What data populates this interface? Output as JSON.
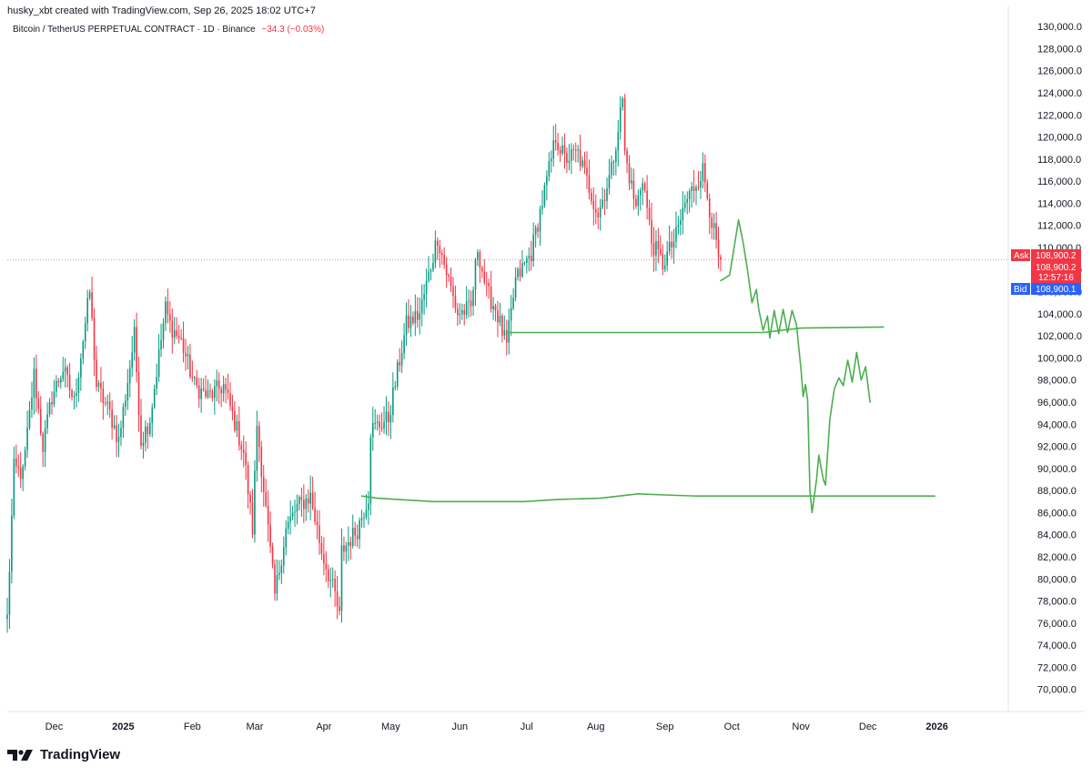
{
  "header": {
    "attribution": "husky_xbt created with TradingView.com, Sep 26, 2025 18:02 UTC+7",
    "symbol": "Bitcoin / TetherUS PERPETUAL CONTRACT · 1D · Binance",
    "change": "−34.3 (−0.03%)"
  },
  "footer": {
    "brand": "TradingView"
  },
  "colors": {
    "up": "#089981",
    "down": "#f23645",
    "drawing": "#4caf50",
    "bid": "#2962ff",
    "ask": "#f23645"
  },
  "price_tags": {
    "ask_label": "Ask",
    "ask_value": "108,900.2",
    "last_value": "108,900.2",
    "countdown": "12:57:16",
    "bid_label": "Bid",
    "bid_value": "108,900.1"
  },
  "chart_data": {
    "type": "candlestick",
    "title": "Bitcoin / TetherUS PERPETUAL CONTRACT · 1D · Binance",
    "ylim": [
      68000,
      131000
    ],
    "y_ticks": [
      "70,000.0",
      "72,000.0",
      "74,000.0",
      "76,000.0",
      "78,000.0",
      "80,000.0",
      "82,000.0",
      "84,000.0",
      "86,000.0",
      "88,000.0",
      "90,000.0",
      "92,000.0",
      "94,000.0",
      "96,000.0",
      "98,000.0",
      "100,000.0",
      "102,000.0",
      "104,000.0",
      "106,000.0",
      "108,000.0",
      "110,000.0",
      "112,000.0",
      "114,000.0",
      "116,000.0",
      "118,000.0",
      "120,000.0",
      "122,000.0",
      "124,000.0",
      "126,000.0",
      "128,000.0",
      "130,000.0"
    ],
    "x_ticks": [
      {
        "label": "Dec",
        "date": "2024-12-01"
      },
      {
        "label": "2025",
        "date": "2025-01-01",
        "bold": true
      },
      {
        "label": "Feb",
        "date": "2025-02-01"
      },
      {
        "label": "Mar",
        "date": "2025-03-01"
      },
      {
        "label": "Apr",
        "date": "2025-04-01"
      },
      {
        "label": "May",
        "date": "2025-05-01"
      },
      {
        "label": "Jun",
        "date": "2025-06-01"
      },
      {
        "label": "Jul",
        "date": "2025-07-01"
      },
      {
        "label": "Aug",
        "date": "2025-08-01"
      },
      {
        "label": "Sep",
        "date": "2025-09-01"
      },
      {
        "label": "Oct",
        "date": "2025-10-01"
      },
      {
        "label": "Nov",
        "date": "2025-11-01"
      },
      {
        "label": "Dec",
        "date": "2025-12-01"
      },
      {
        "label": "2026",
        "date": "2026-01-01",
        "bold": true
      }
    ],
    "anchors": [
      [
        "2024-11-10",
        76500
      ],
      [
        "2024-11-13",
        90000
      ],
      [
        "2024-11-17",
        89500
      ],
      [
        "2024-11-22",
        98500
      ],
      [
        "2024-11-26",
        92000
      ],
      [
        "2024-11-30",
        96500
      ],
      [
        "2024-12-05",
        99000
      ],
      [
        "2024-12-10",
        96000
      ],
      [
        "2024-12-17",
        106000
      ],
      [
        "2024-12-20",
        97500
      ],
      [
        "2024-12-26",
        95000
      ],
      [
        "2024-12-30",
        92500
      ],
      [
        "2025-01-06",
        102000
      ],
      [
        "2025-01-09",
        92500
      ],
      [
        "2025-01-13",
        94500
      ],
      [
        "2025-01-20",
        104500
      ],
      [
        "2025-01-22",
        103000
      ],
      [
        "2025-01-27",
        101500
      ],
      [
        "2025-02-02",
        97500
      ],
      [
        "2025-02-08",
        96500
      ],
      [
        "2025-02-15",
        97500
      ],
      [
        "2025-02-24",
        91500
      ],
      [
        "2025-02-28",
        84500
      ],
      [
        "2025-03-02",
        94000
      ],
      [
        "2025-03-10",
        78500
      ],
      [
        "2025-03-15",
        84500
      ],
      [
        "2025-03-20",
        86500
      ],
      [
        "2025-03-26",
        87500
      ],
      [
        "2025-03-31",
        82500
      ],
      [
        "2025-04-06",
        78500
      ],
      [
        "2025-04-08",
        76500
      ],
      [
        "2025-04-09",
        82500
      ],
      [
        "2025-04-16",
        84500
      ],
      [
        "2025-04-21",
        87500
      ],
      [
        "2025-04-22",
        93500
      ],
      [
        "2025-04-30",
        94500
      ],
      [
        "2025-05-08",
        103000
      ],
      [
        "2025-05-14",
        104000
      ],
      [
        "2025-05-22",
        111000
      ],
      [
        "2025-05-25",
        108500
      ],
      [
        "2025-05-31",
        104000
      ],
      [
        "2025-06-06",
        104500
      ],
      [
        "2025-06-09",
        110000
      ],
      [
        "2025-06-13",
        106000
      ],
      [
        "2025-06-17",
        104500
      ],
      [
        "2025-06-22",
        101000
      ],
      [
        "2025-06-26",
        107000
      ],
      [
        "2025-07-03",
        109500
      ],
      [
        "2025-07-10",
        116000
      ],
      [
        "2025-07-14",
        120000
      ],
      [
        "2025-07-18",
        118000
      ],
      [
        "2025-07-24",
        118500
      ],
      [
        "2025-08-02",
        113000
      ],
      [
        "2025-08-08",
        117000
      ],
      [
        "2025-08-13",
        123500
      ],
      [
        "2025-08-14",
        118500
      ],
      [
        "2025-08-19",
        113500
      ],
      [
        "2025-08-22",
        116500
      ],
      [
        "2025-08-26",
        110500
      ],
      [
        "2025-08-31",
        108500
      ],
      [
        "2025-09-06",
        111000
      ],
      [
        "2025-09-10",
        114000
      ],
      [
        "2025-09-18",
        117000
      ],
      [
        "2025-09-22",
        112500
      ],
      [
        "2025-09-25",
        109000
      ],
      [
        "2025-09-26",
        108900
      ]
    ],
    "drawings": [
      {
        "name": "support-line-102k",
        "points": [
          [
            "2025-06-22",
            102300
          ],
          [
            "2025-10-15",
            102300
          ],
          [
            "2025-11-01",
            102700
          ],
          [
            "2025-12-08",
            102800
          ]
        ]
      },
      {
        "name": "support-line-87k",
        "points": [
          [
            "2025-04-18",
            87500
          ],
          [
            "2025-04-25",
            87300
          ],
          [
            "2025-05-20",
            87000
          ],
          [
            "2025-06-30",
            87000
          ],
          [
            "2025-07-15",
            87200
          ],
          [
            "2025-08-03",
            87300
          ],
          [
            "2025-08-20",
            87700
          ],
          [
            "2025-09-01",
            87600
          ],
          [
            "2025-09-15",
            87500
          ],
          [
            "2025-10-15",
            87500
          ],
          [
            "2025-11-15",
            87500
          ],
          [
            "2025-12-31",
            87500
          ]
        ]
      },
      {
        "name": "forecast-path",
        "points": [
          [
            "2025-09-26",
            107000
          ],
          [
            "2025-09-30",
            107500
          ],
          [
            "2025-10-02",
            110000
          ],
          [
            "2025-10-04",
            112500
          ],
          [
            "2025-10-06",
            110500
          ],
          [
            "2025-10-08",
            108000
          ],
          [
            "2025-10-10",
            105000
          ],
          [
            "2025-10-12",
            106200
          ],
          [
            "2025-10-13",
            104500
          ],
          [
            "2025-10-15",
            102500
          ],
          [
            "2025-10-17",
            103800
          ],
          [
            "2025-10-18",
            101800
          ],
          [
            "2025-10-20",
            104300
          ],
          [
            "2025-10-22",
            102200
          ],
          [
            "2025-10-24",
            104400
          ],
          [
            "2025-10-26",
            102300
          ],
          [
            "2025-10-28",
            104300
          ],
          [
            "2025-10-30",
            103000
          ],
          [
            "2025-10-31",
            101000
          ],
          [
            "2025-11-01",
            99000
          ],
          [
            "2025-11-02",
            96500
          ],
          [
            "2025-11-03",
            97600
          ],
          [
            "2025-11-04",
            96200
          ],
          [
            "2025-11-05",
            88000
          ],
          [
            "2025-11-06",
            86000
          ],
          [
            "2025-11-08",
            89000
          ],
          [
            "2025-11-09",
            91200
          ],
          [
            "2025-11-11",
            89000
          ],
          [
            "2025-11-12",
            88500
          ],
          [
            "2025-11-14",
            94500
          ],
          [
            "2025-11-16",
            97200
          ],
          [
            "2025-11-18",
            98200
          ],
          [
            "2025-11-20",
            97500
          ],
          [
            "2025-11-22",
            99800
          ],
          [
            "2025-11-24",
            97800
          ],
          [
            "2025-11-26",
            100500
          ],
          [
            "2025-11-28",
            98000
          ],
          [
            "2025-11-30",
            99200
          ],
          [
            "2025-12-02",
            96000
          ]
        ]
      }
    ],
    "current_price": 108900.2,
    "grid": false
  }
}
